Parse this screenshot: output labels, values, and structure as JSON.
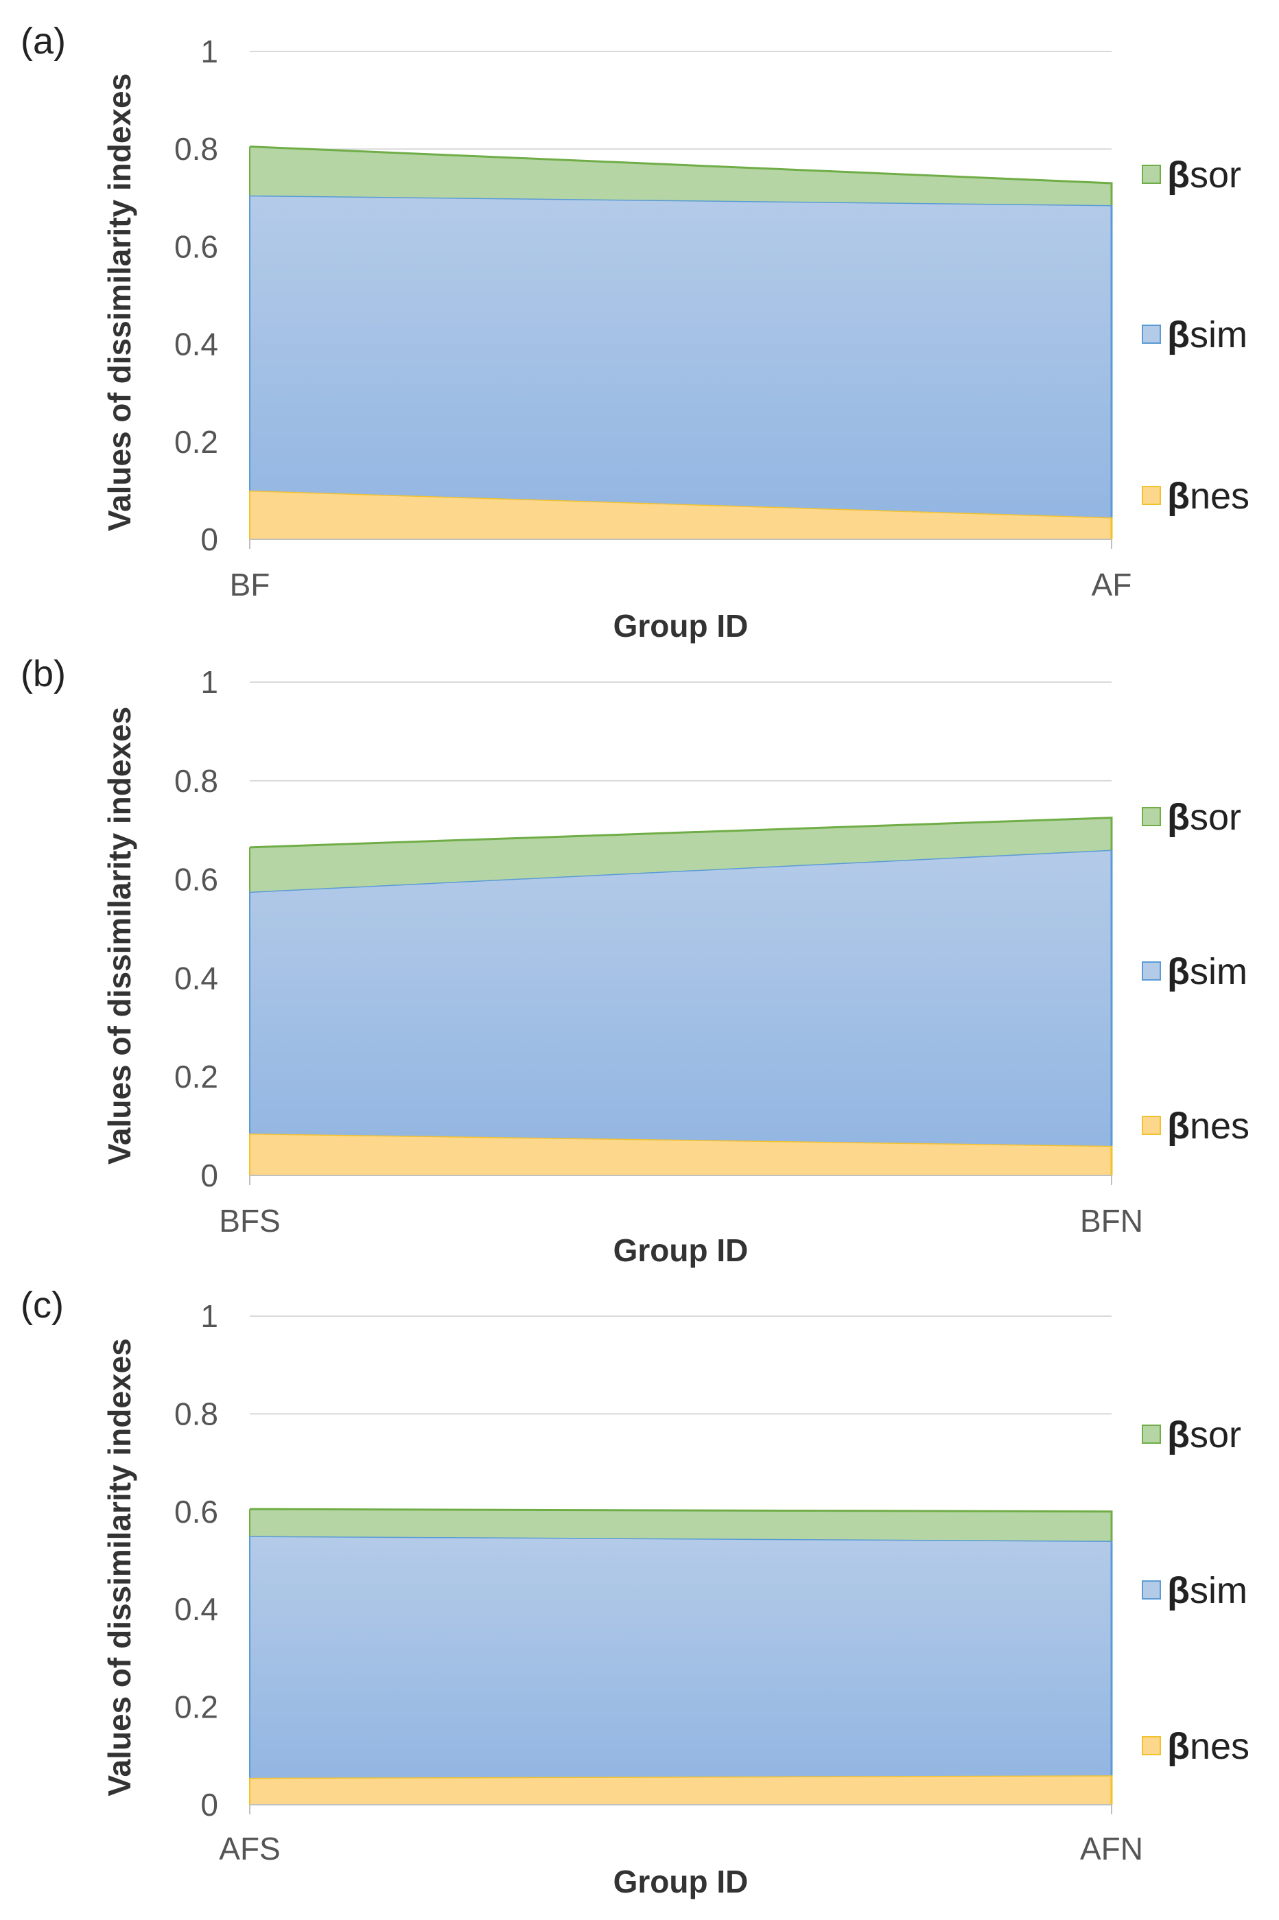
{
  "colors": {
    "bnes_fill": "#fdd78c",
    "bnes_line": "#f2c12e",
    "bsim_fill_top": "#b4cbe8",
    "bsim_fill_bottom": "#93b6e2",
    "bsim_line": "#5b9bd5",
    "bsor_fill": "#b5d6a4",
    "bsor_line": "#70ad47",
    "grid": "#d9d9d9",
    "axis": "#bfbfbf"
  },
  "chart_data": [
    {
      "type": "area",
      "stacked": true,
      "panel_label": "(a)",
      "categories": [
        "BF",
        "AF"
      ],
      "xlabel": "Group ID",
      "ylabel": "Values of dissimilarity indexes",
      "ylim": [
        0,
        1
      ],
      "yticks": [
        "0",
        "0.2",
        "0.4",
        "0.6",
        "0.8",
        "1"
      ],
      "grid": true,
      "legend_position": "right",
      "series": [
        {
          "key": "bnes",
          "name": "βnes",
          "greek": "β",
          "sub": "nes",
          "values": [
            0.1,
            0.045
          ]
        },
        {
          "key": "bsim",
          "name": "βsim",
          "greek": "β",
          "sub": "sim",
          "values": [
            0.605,
            0.64
          ]
        },
        {
          "key": "bsor",
          "name": "βsor",
          "greek": "β",
          "sub": "sor",
          "values": [
            0.1,
            0.045
          ]
        }
      ]
    },
    {
      "type": "area",
      "stacked": true,
      "panel_label": "(b)",
      "categories": [
        "BFS",
        "BFN"
      ],
      "xlabel": "Group ID",
      "ylabel": "Values of dissimilarity indexes",
      "ylim": [
        0,
        1
      ],
      "yticks": [
        "0",
        "0.2",
        "0.4",
        "0.6",
        "0.8",
        "1"
      ],
      "grid": true,
      "legend_position": "right",
      "series": [
        {
          "key": "bnes",
          "name": "βnes",
          "greek": "β",
          "sub": "nes",
          "values": [
            0.085,
            0.06
          ]
        },
        {
          "key": "bsim",
          "name": "βsim",
          "greek": "β",
          "sub": "sim",
          "values": [
            0.49,
            0.6
          ]
        },
        {
          "key": "bsor",
          "name": "βsor",
          "greek": "β",
          "sub": "sor",
          "values": [
            0.09,
            0.065
          ]
        }
      ]
    },
    {
      "type": "area",
      "stacked": true,
      "panel_label": "(c)",
      "categories": [
        "AFS",
        "AFN"
      ],
      "xlabel": "Group ID",
      "ylabel": "Values of dissimilarity indexes",
      "ylim": [
        0,
        1
      ],
      "yticks": [
        "0",
        "0.2",
        "0.4",
        "0.6",
        "0.8",
        "1"
      ],
      "grid": true,
      "legend_position": "right",
      "series": [
        {
          "key": "bnes",
          "name": "βnes",
          "greek": "β",
          "sub": "nes",
          "values": [
            0.055,
            0.06
          ]
        },
        {
          "key": "bsim",
          "name": "βsim",
          "greek": "β",
          "sub": "sim",
          "values": [
            0.495,
            0.48
          ]
        },
        {
          "key": "bsor",
          "name": "βsor",
          "greek": "β",
          "sub": "sor",
          "values": [
            0.055,
            0.06
          ]
        }
      ]
    }
  ]
}
